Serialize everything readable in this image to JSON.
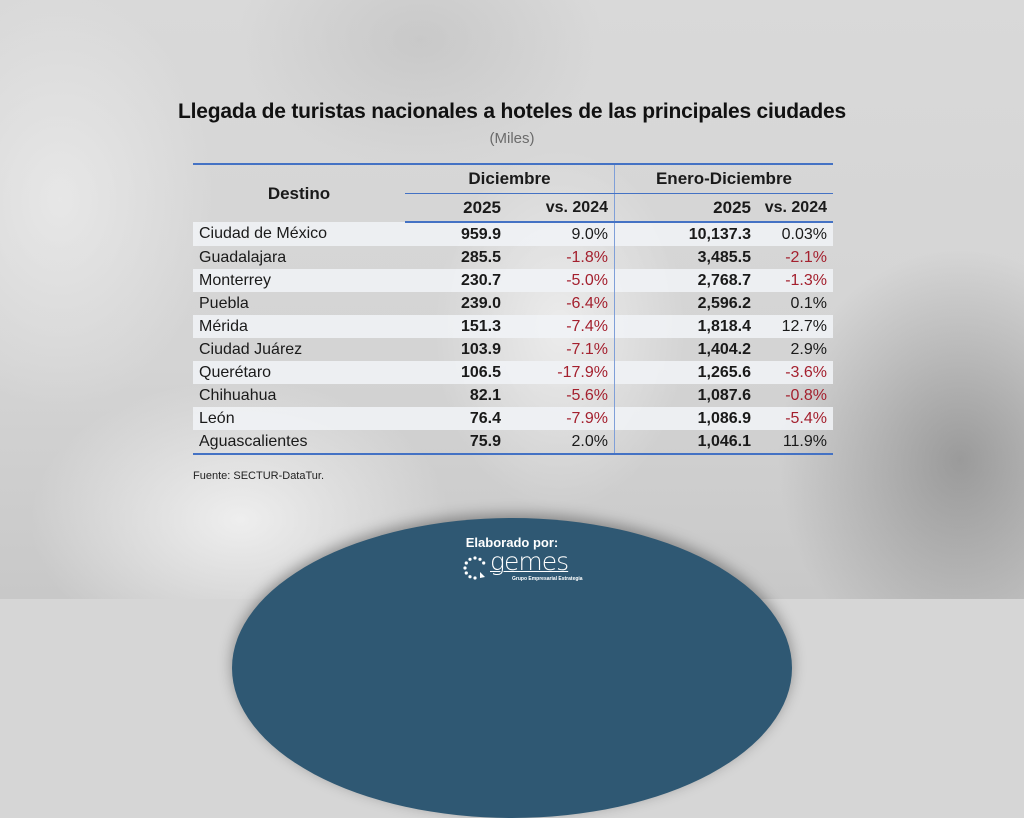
{
  "header": {
    "title": "Llegada de turistas nacionales a hoteles de las principales ciudades",
    "subtitle": "(Miles)"
  },
  "table": {
    "destination_header": "Destino",
    "groups": [
      {
        "label": "Diciembre",
        "year_label": "2025",
        "change_label": "vs. 2024"
      },
      {
        "label": "Enero-Diciembre",
        "year_label": "2025",
        "change_label": "vs. 2024"
      }
    ],
    "rows": [
      {
        "destino": "Ciudad de México",
        "dic_2025": "959.9",
        "dic_vs": "9.0%",
        "dic_neg": false,
        "ed_2025": "10,137.3",
        "ed_vs": "0.03%",
        "ed_neg": false
      },
      {
        "destino": "Guadalajara",
        "dic_2025": "285.5",
        "dic_vs": "-1.8%",
        "dic_neg": true,
        "ed_2025": "3,485.5",
        "ed_vs": "-2.1%",
        "ed_neg": true
      },
      {
        "destino": "Monterrey",
        "dic_2025": "230.7",
        "dic_vs": "-5.0%",
        "dic_neg": true,
        "ed_2025": "2,768.7",
        "ed_vs": "-1.3%",
        "ed_neg": true
      },
      {
        "destino": "Puebla",
        "dic_2025": "239.0",
        "dic_vs": "-6.4%",
        "dic_neg": true,
        "ed_2025": "2,596.2",
        "ed_vs": "0.1%",
        "ed_neg": false
      },
      {
        "destino": "Mérida",
        "dic_2025": "151.3",
        "dic_vs": "-7.4%",
        "dic_neg": true,
        "ed_2025": "1,818.4",
        "ed_vs": "12.7%",
        "ed_neg": false
      },
      {
        "destino": "Ciudad Juárez",
        "dic_2025": "103.9",
        "dic_vs": "-7.1%",
        "dic_neg": true,
        "ed_2025": "1,404.2",
        "ed_vs": "2.9%",
        "ed_neg": false
      },
      {
        "destino": "Querétaro",
        "dic_2025": "106.5",
        "dic_vs": "-17.9%",
        "dic_neg": true,
        "ed_2025": "1,265.6",
        "ed_vs": "-3.6%",
        "ed_neg": true
      },
      {
        "destino": "Chihuahua",
        "dic_2025": "82.1",
        "dic_vs": "-5.6%",
        "dic_neg": true,
        "ed_2025": "1,087.6",
        "ed_vs": "-0.8%",
        "ed_neg": true
      },
      {
        "destino": "León",
        "dic_2025": "76.4",
        "dic_vs": "-7.9%",
        "dic_neg": true,
        "ed_2025": "1,086.9",
        "ed_vs": "-5.4%",
        "ed_neg": true
      },
      {
        "destino": "Aguascalientes",
        "dic_2025": "75.9",
        "dic_vs": "2.0%",
        "dic_neg": false,
        "ed_2025": "1,046.1",
        "ed_vs": "11.9%",
        "ed_neg": false
      }
    ]
  },
  "source": "Fuente: SECTUR-DataTur.",
  "footer": {
    "label": "Elaborado por:",
    "logo_name": "gemes",
    "logo_tagline": "Grupo Empresarial Estrategia"
  },
  "colors": {
    "accent_blue": "#4472c4",
    "negative_red": "#a4202e",
    "footer_bg": "#2f5873"
  }
}
